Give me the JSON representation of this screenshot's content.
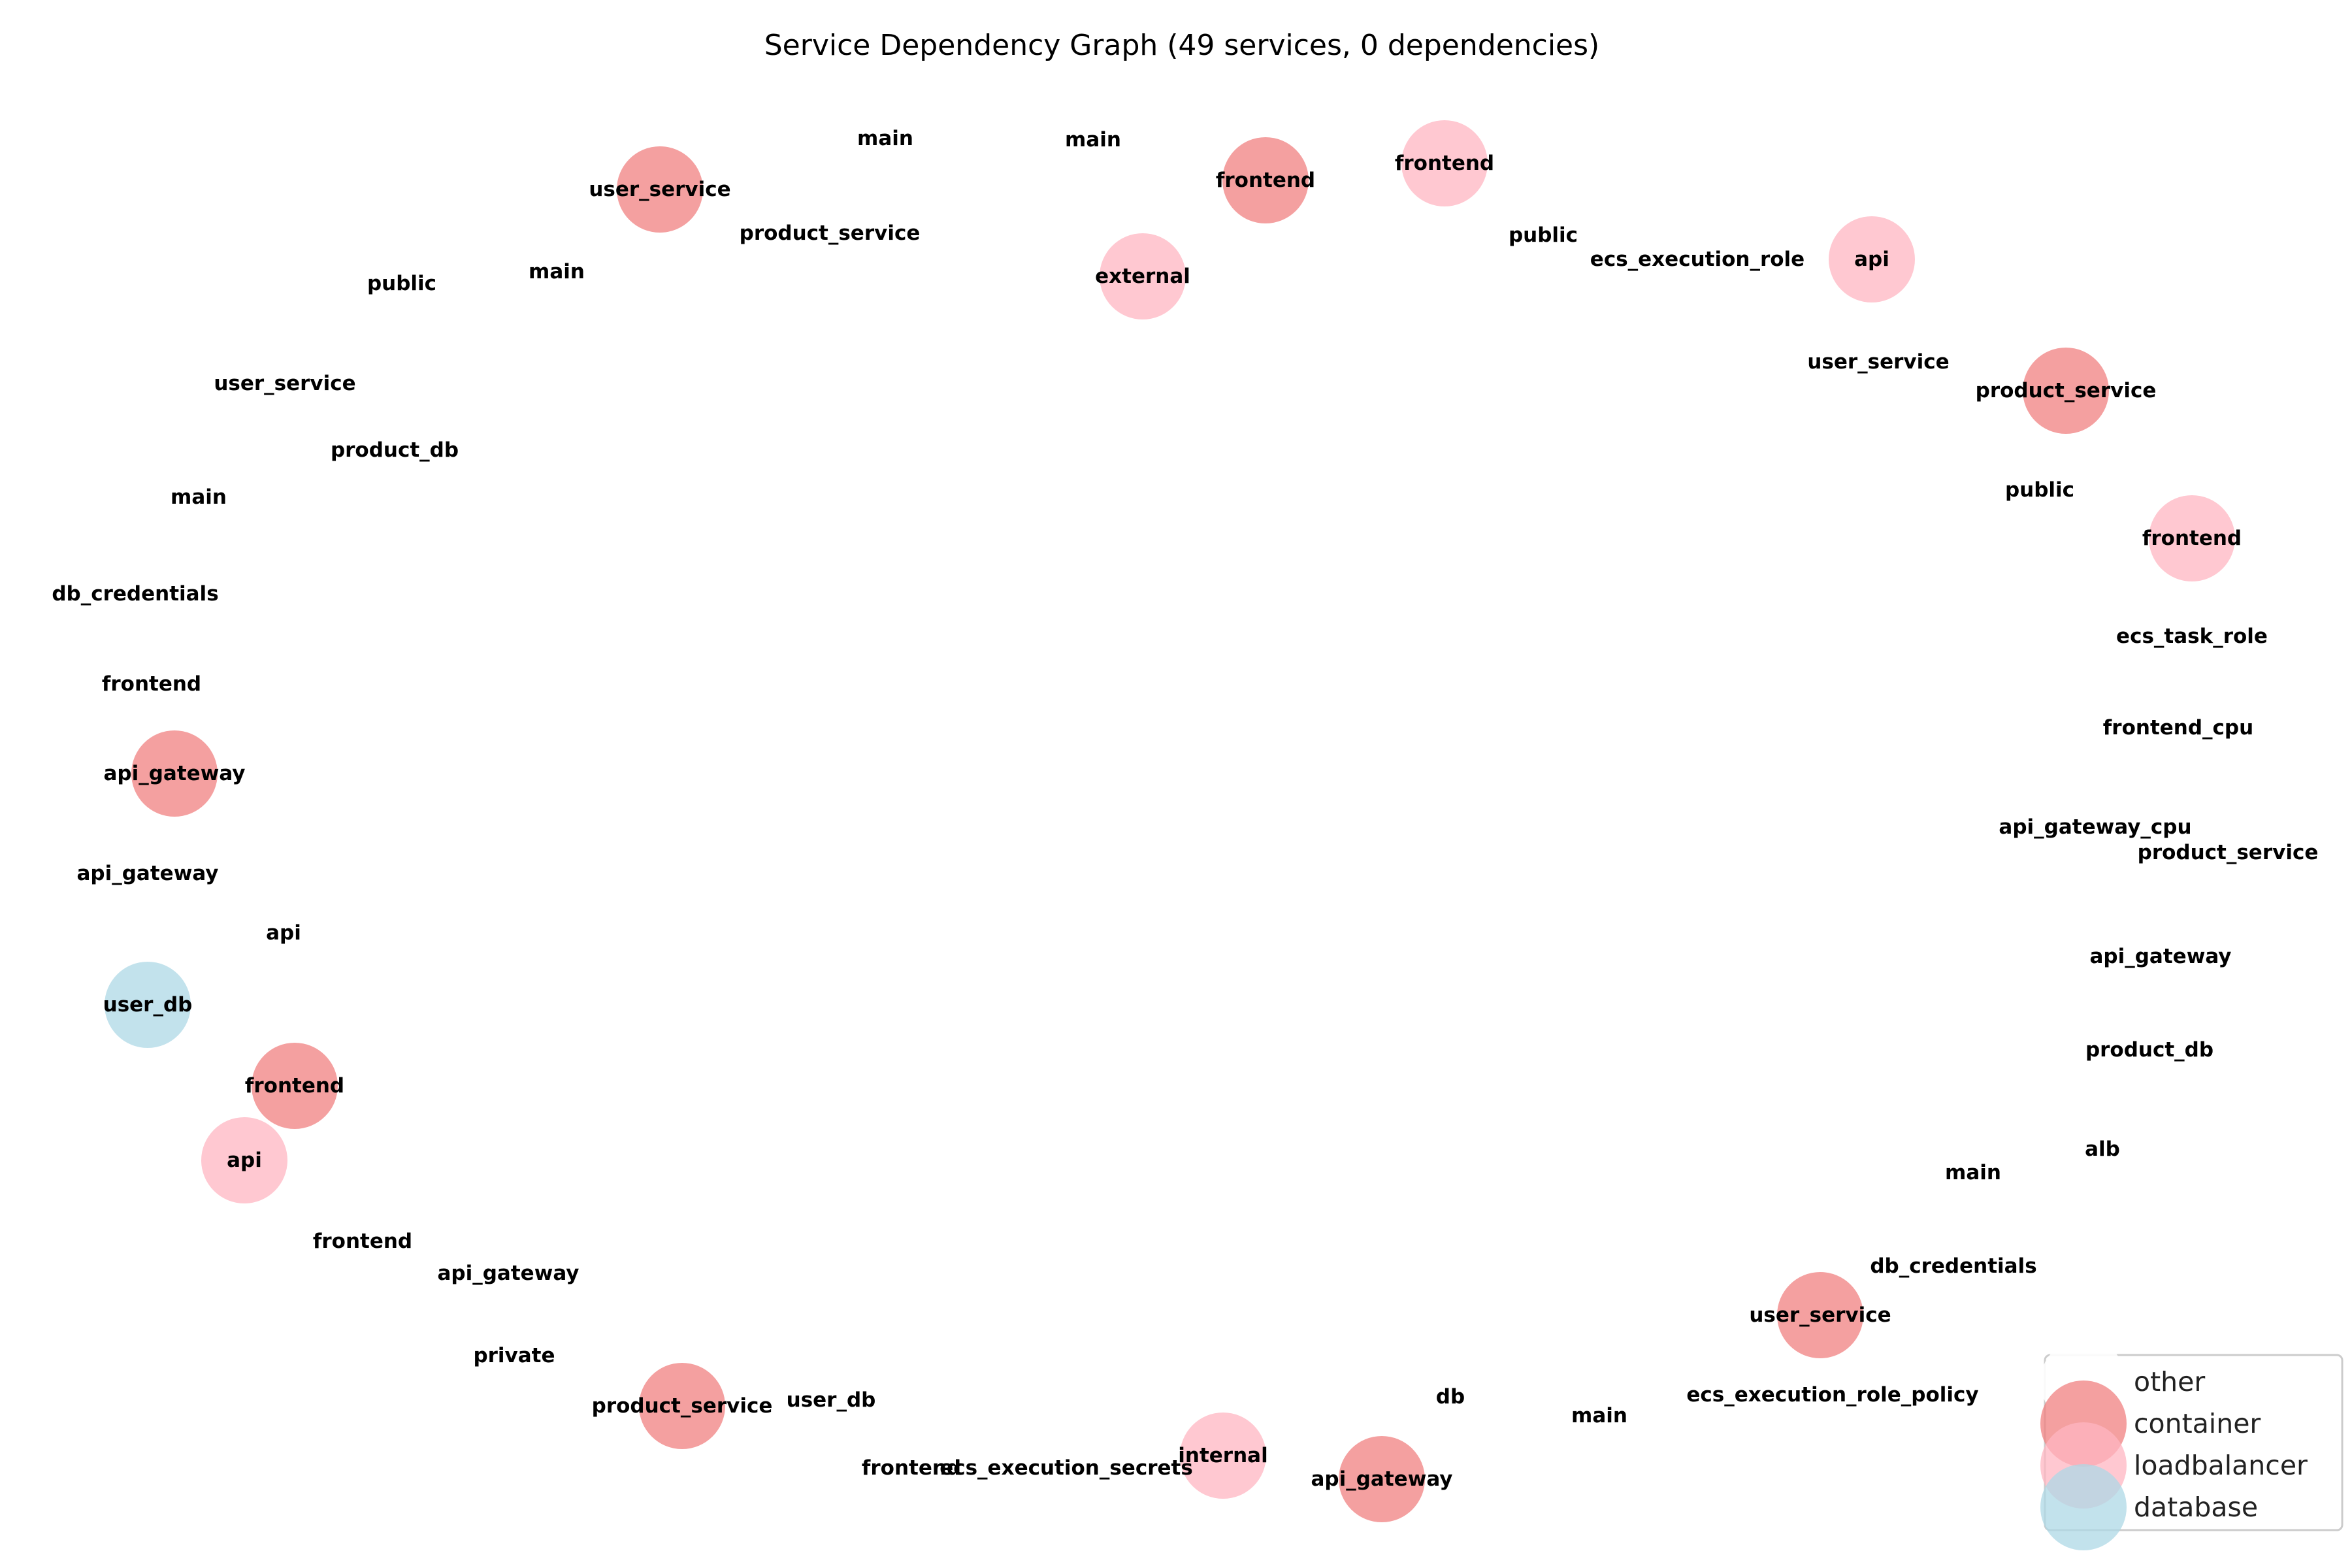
{
  "title": "Service Dependency Graph (49 services, 0 dependencies)",
  "node_types": {
    "other": {
      "label": "other",
      "color": "#ffffff"
    },
    "container": {
      "label": "container",
      "color": "#f08080"
    },
    "loadbalancer": {
      "label": "loadbalancer",
      "color": "#ffb6c1"
    },
    "database": {
      "label": "database",
      "color": "#add8e6"
    }
  },
  "legend": [
    "other",
    "container",
    "loadbalancer",
    "database"
  ],
  "nodes": [
    {
      "label": "user_service",
      "type": "container"
    },
    {
      "label": "main",
      "type": "other"
    },
    {
      "label": "main",
      "type": "other"
    },
    {
      "label": "frontend",
      "type": "container"
    },
    {
      "label": "frontend",
      "type": "loadbalancer"
    },
    {
      "label": "product_service",
      "type": "other"
    },
    {
      "label": "external",
      "type": "loadbalancer"
    },
    {
      "label": "public",
      "type": "other"
    },
    {
      "label": "main",
      "type": "other"
    },
    {
      "label": "public",
      "type": "other"
    },
    {
      "label": "ecs_execution_role",
      "type": "other"
    },
    {
      "label": "api",
      "type": "loadbalancer"
    },
    {
      "label": "user_service",
      "type": "other"
    },
    {
      "label": "product_service",
      "type": "container"
    },
    {
      "label": "user_service",
      "type": "other"
    },
    {
      "label": "product_db",
      "type": "other"
    },
    {
      "label": "public",
      "type": "other"
    },
    {
      "label": "main",
      "type": "other"
    },
    {
      "label": "frontend",
      "type": "loadbalancer"
    },
    {
      "label": "db_credentials",
      "type": "other"
    },
    {
      "label": "ecs_task_role",
      "type": "other"
    },
    {
      "label": "frontend",
      "type": "other"
    },
    {
      "label": "frontend_cpu",
      "type": "other"
    },
    {
      "label": "api_gateway",
      "type": "container"
    },
    {
      "label": "api_gateway_cpu",
      "type": "other"
    },
    {
      "label": "product_service",
      "type": "other"
    },
    {
      "label": "api_gateway",
      "type": "other"
    },
    {
      "label": "api",
      "type": "other"
    },
    {
      "label": "api_gateway",
      "type": "other"
    },
    {
      "label": "user_db",
      "type": "database"
    },
    {
      "label": "product_db",
      "type": "other"
    },
    {
      "label": "frontend",
      "type": "container"
    },
    {
      "label": "alb",
      "type": "other"
    },
    {
      "label": "api",
      "type": "loadbalancer"
    },
    {
      "label": "main",
      "type": "other"
    },
    {
      "label": "frontend",
      "type": "other"
    },
    {
      "label": "db_credentials",
      "type": "other"
    },
    {
      "label": "api_gateway",
      "type": "other"
    },
    {
      "label": "user_service",
      "type": "container"
    },
    {
      "label": "private",
      "type": "other"
    },
    {
      "label": "ecs_execution_role_policy",
      "type": "other"
    },
    {
      "label": "db",
      "type": "other"
    },
    {
      "label": "user_db",
      "type": "other"
    },
    {
      "label": "product_service",
      "type": "container"
    },
    {
      "label": "main",
      "type": "other"
    },
    {
      "label": "internal",
      "type": "loadbalancer"
    },
    {
      "label": "frontend",
      "type": "other"
    },
    {
      "label": "ecs_execution_secrets",
      "type": "other"
    },
    {
      "label": "api_gateway",
      "type": "container"
    }
  ]
}
